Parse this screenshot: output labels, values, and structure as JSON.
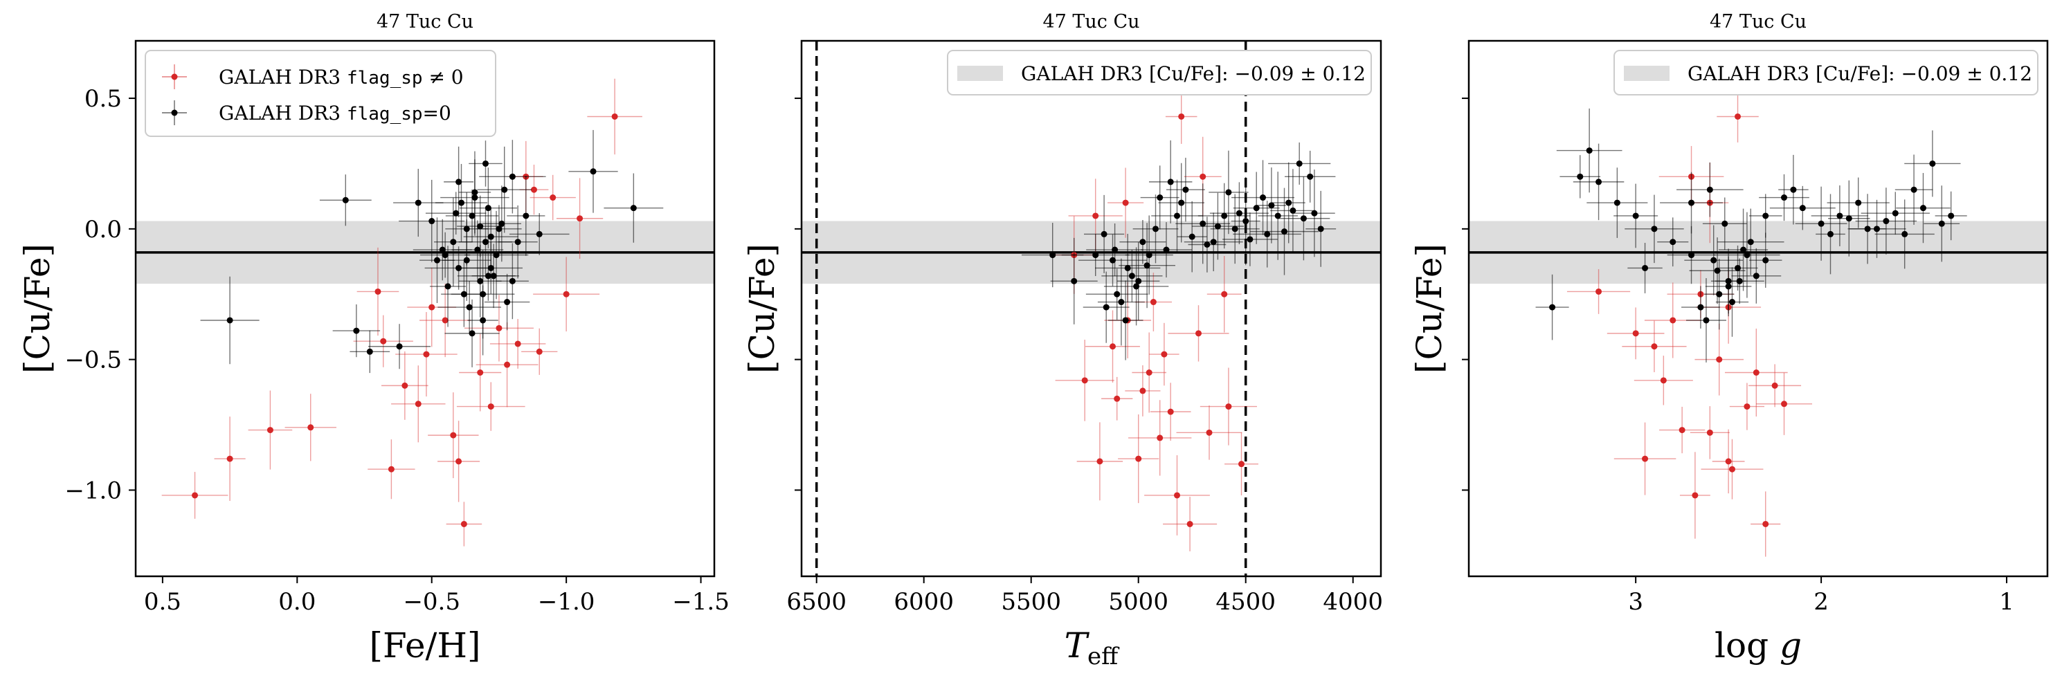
{
  "chart_data": [
    {
      "type": "scatter",
      "title": "47 Tuc Cu",
      "xlabel": "[Fe/H]",
      "ylabel": "[Cu/Fe]",
      "xlim": [
        0.6,
        -1.55
      ],
      "ylim": [
        -1.33,
        0.72
      ],
      "x_reversed": true,
      "xticks": [
        0.5,
        0.0,
        -0.5,
        -1.0,
        -1.5
      ],
      "xtick_labels": [
        "0.5",
        "0.0",
        "−0.5",
        "−1.0",
        "−1.5"
      ],
      "yticks": [
        0.5,
        0.0,
        -0.5,
        -1.0
      ],
      "ytick_labels": [
        "0.5",
        "0.0",
        "−0.5",
        "−1.0"
      ],
      "legend": {
        "position": "upper-left",
        "entries": [
          {
            "label_prefix": "GALAH DR3 ",
            "code": "flag_sp",
            "label_suffix": " ≠ 0",
            "color": "#d62728"
          },
          {
            "label_prefix": "GALAH DR3 ",
            "code": "flag_sp",
            "label_suffix": "=0",
            "color": "#000000"
          }
        ]
      },
      "reference": {
        "value": -0.09,
        "error": 0.12
      },
      "series": [
        {
          "name": "GALAH DR3 flag_sp ≠ 0",
          "color": "#d62728",
          "x": [
            0.38,
            0.25,
            -0.05,
            0.1,
            -0.35,
            -0.45,
            -0.62,
            -0.6,
            -0.58,
            -0.72,
            -0.78,
            -0.9,
            -0.75,
            -0.48,
            -0.4,
            -1.0,
            -1.05,
            -1.18,
            -0.3,
            -0.32,
            -0.55,
            -0.82,
            -0.95,
            -0.85,
            -0.68,
            -0.5,
            -0.88
          ],
          "y": [
            -1.02,
            -0.88,
            -0.76,
            -0.77,
            -0.92,
            -0.67,
            -1.13,
            -0.89,
            -0.79,
            -0.68,
            -0.52,
            -0.47,
            -0.38,
            -0.48,
            -0.6,
            -0.25,
            0.04,
            0.43,
            -0.24,
            -0.43,
            -0.35,
            -0.44,
            0.12,
            0.2,
            -0.55,
            -0.3,
            0.15
          ]
        },
        {
          "name": "GALAH DR3 flag_sp=0",
          "color": "#000000",
          "x": [
            0.25,
            -0.18,
            -0.22,
            -0.27,
            -0.38,
            -1.25,
            -1.1,
            -0.45,
            -0.55,
            -0.6,
            -0.65,
            -0.7,
            -0.75,
            -0.72,
            -0.68,
            -0.62,
            -0.58,
            -0.66,
            -0.71,
            -0.74,
            -0.64,
            -0.69,
            -0.77,
            -0.8,
            -0.85,
            -0.9,
            -0.52,
            -0.5,
            -0.56,
            -0.63,
            -0.67,
            -0.73,
            -0.78,
            -0.61,
            -0.7,
            -0.65,
            -0.6,
            -0.76,
            -0.82,
            -0.59,
            -0.69,
            -0.72,
            -0.66,
            -0.63,
            -0.71,
            -0.54,
            -0.8,
            -0.68
          ],
          "y": [
            -0.35,
            0.11,
            -0.39,
            -0.47,
            -0.45,
            0.08,
            0.22,
            0.1,
            -0.1,
            0.18,
            0.05,
            -0.05,
            0.0,
            -0.15,
            -0.2,
            -0.25,
            -0.05,
            0.12,
            0.08,
            -0.1,
            -0.3,
            -0.35,
            0.15,
            0.2,
            0.05,
            -0.02,
            -0.12,
            0.03,
            -0.22,
            0.0,
            -0.08,
            -0.18,
            -0.28,
            0.1,
            0.25,
            -0.4,
            -0.15,
            0.02,
            -0.05,
            0.06,
            -0.25,
            -0.03,
            0.14,
            -0.12,
            -0.18,
            -0.08,
            -0.2,
            0.01
          ]
        }
      ]
    },
    {
      "type": "scatter",
      "title": "47 Tuc Cu",
      "xlabel": "T_eff",
      "ylabel": "[Cu/Fe]",
      "xlim": [
        6570,
        3870
      ],
      "ylim": [
        -1.33,
        0.72
      ],
      "x_reversed": true,
      "xticks": [
        6500,
        6000,
        5500,
        5000,
        4500,
        4000
      ],
      "xtick_labels": [
        "6500",
        "6000",
        "5500",
        "5000",
        "4500",
        "4000"
      ],
      "yticks": [
        0.5,
        0.0,
        -0.5,
        -1.0
      ],
      "ytick_labels": [
        "",
        "",
        "",
        ""
      ],
      "vlines": [
        6500,
        4500
      ],
      "legend": {
        "position": "upper-right",
        "entries": [
          {
            "label_prefix": "GALAH DR3 [Cu/Fe]: ",
            "value_text": "−0.09 ± 0.12",
            "color": "#dddddd"
          }
        ]
      },
      "reference": {
        "value": -0.09,
        "error": 0.12
      },
      "series": [
        {
          "name": "GALAH DR3 flag_sp ≠ 0",
          "color": "#d62728",
          "x": [
            5180,
            5000,
            4820,
            4760,
            4670,
            4580,
            4520,
            4900,
            5100,
            4850,
            5250,
            5120,
            4950,
            4800,
            4700,
            5300,
            5050,
            4980,
            4880,
            4600,
            5200,
            4720,
            4930,
            5060
          ],
          "y": [
            -0.89,
            -0.88,
            -1.02,
            -1.13,
            -0.78,
            -0.68,
            -0.9,
            -0.8,
            -0.65,
            -0.7,
            -0.58,
            -0.45,
            -0.55,
            0.43,
            0.2,
            -0.1,
            -0.35,
            -0.62,
            -0.48,
            -0.25,
            0.05,
            -0.4,
            -0.28,
            0.1
          ]
        },
        {
          "name": "GALAH DR3 flag_sp=0",
          "color": "#000000",
          "x": [
            4250,
            4200,
            4150,
            4300,
            4350,
            4400,
            4450,
            4500,
            4550,
            4600,
            4650,
            4700,
            4750,
            4800,
            4850,
            4900,
            4950,
            5000,
            5050,
            5100,
            5150,
            5200,
            4980,
            5030,
            5080,
            5120,
            4920,
            4870,
            4820,
            4780,
            4280,
            4320,
            4380,
            4420,
            4480,
            4530,
            4580,
            4630,
            4680,
            5400,
            5300,
            4230,
            4180,
            5060,
            5010,
            4960,
            5110,
            5160
          ],
          "y": [
            0.25,
            0.2,
            0.0,
            0.1,
            0.05,
            -0.02,
            0.08,
            0.03,
            0.0,
            0.05,
            -0.05,
            0.02,
            -0.03,
            0.1,
            0.18,
            0.12,
            -0.1,
            -0.2,
            -0.15,
            -0.25,
            -0.3,
            -0.1,
            -0.05,
            -0.18,
            -0.28,
            -0.12,
            0.0,
            -0.08,
            0.05,
            0.15,
            0.07,
            -0.01,
            0.09,
            0.12,
            -0.04,
            0.06,
            0.14,
            0.01,
            -0.06,
            -0.1,
            -0.2,
            0.04,
            0.06,
            -0.35,
            -0.22,
            -0.14,
            -0.08,
            -0.02
          ]
        }
      ]
    },
    {
      "type": "scatter",
      "title": "47 Tuc Cu",
      "xlabel": "log g",
      "ylabel": "[Cu/Fe]",
      "xlim": [
        3.9,
        0.78
      ],
      "ylim": [
        -1.33,
        0.72
      ],
      "x_reversed": true,
      "xticks": [
        3,
        2,
        1
      ],
      "xtick_labels": [
        "3",
        "2",
        "1"
      ],
      "yticks": [
        0.5,
        0.0,
        -0.5,
        -1.0
      ],
      "ytick_labels": [
        "",
        "",
        "",
        ""
      ],
      "legend": {
        "position": "upper-right",
        "entries": [
          {
            "label_prefix": "GALAH DR3 [Cu/Fe]: ",
            "value_text": "−0.09 ± 0.12",
            "color": "#dddddd"
          }
        ]
      },
      "reference": {
        "value": -0.09,
        "error": 0.12
      },
      "series": [
        {
          "name": "GALAH DR3 flag_sp ≠ 0",
          "color": "#d62728",
          "x": [
            2.95,
            2.68,
            2.3,
            2.48,
            2.5,
            2.6,
            2.4,
            2.2,
            2.75,
            2.85,
            3.2,
            3.0,
            2.9,
            2.55,
            2.35,
            2.45,
            2.7,
            2.8,
            2.65,
            2.25,
            2.5,
            2.6
          ],
          "y": [
            -0.88,
            -1.02,
            -1.13,
            -0.92,
            -0.89,
            -0.78,
            -0.68,
            -0.67,
            -0.77,
            -0.58,
            -0.24,
            -0.4,
            -0.45,
            -0.5,
            -0.55,
            0.43,
            0.2,
            -0.35,
            -0.25,
            -0.6,
            -0.3,
            0.1
          ]
        },
        {
          "name": "GALAH DR3 flag_sp=0",
          "color": "#000000",
          "x": [
            3.45,
            3.25,
            3.2,
            3.1,
            3.0,
            2.9,
            2.8,
            2.7,
            2.6,
            2.5,
            2.4,
            2.3,
            2.2,
            2.1,
            2.0,
            1.9,
            1.8,
            1.7,
            1.6,
            1.5,
            1.4,
            1.35,
            1.3,
            1.45,
            1.55,
            1.65,
            1.75,
            1.85,
            2.45,
            2.55,
            2.65,
            2.35,
            2.5,
            2.42,
            2.58,
            2.62,
            2.38,
            2.48,
            2.7,
            2.52,
            2.44,
            2.56,
            2.3,
            3.3,
            2.95,
            2.15,
            1.95
          ],
          "y": [
            -0.3,
            0.3,
            0.18,
            0.1,
            0.05,
            0.0,
            -0.05,
            0.1,
            0.15,
            -0.2,
            -0.1,
            0.05,
            0.12,
            0.08,
            0.02,
            0.05,
            0.1,
            0.0,
            0.06,
            0.15,
            0.25,
            0.02,
            0.05,
            0.08,
            -0.02,
            0.03,
            0.0,
            0.04,
            -0.15,
            -0.25,
            -0.3,
            -0.18,
            -0.22,
            -0.08,
            -0.12,
            -0.35,
            -0.05,
            -0.28,
            -0.1,
            0.02,
            -0.2,
            -0.16,
            -0.12,
            0.2,
            -0.15,
            0.15,
            -0.02
          ]
        }
      ]
    }
  ]
}
